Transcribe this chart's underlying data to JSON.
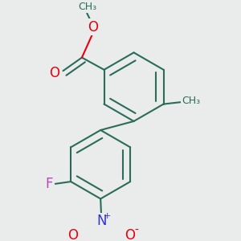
{
  "bg_color": "#eaecec",
  "bond_color": "#2a6b5a",
  "bond_width": 1.5,
  "atom_colors": {
    "O": "#e8000d",
    "F": "#bb44bb",
    "N": "#3333cc",
    "C": "#2a6b5a"
  },
  "font_size_atom": 11,
  "methyl_color": "#2a6b5a"
}
